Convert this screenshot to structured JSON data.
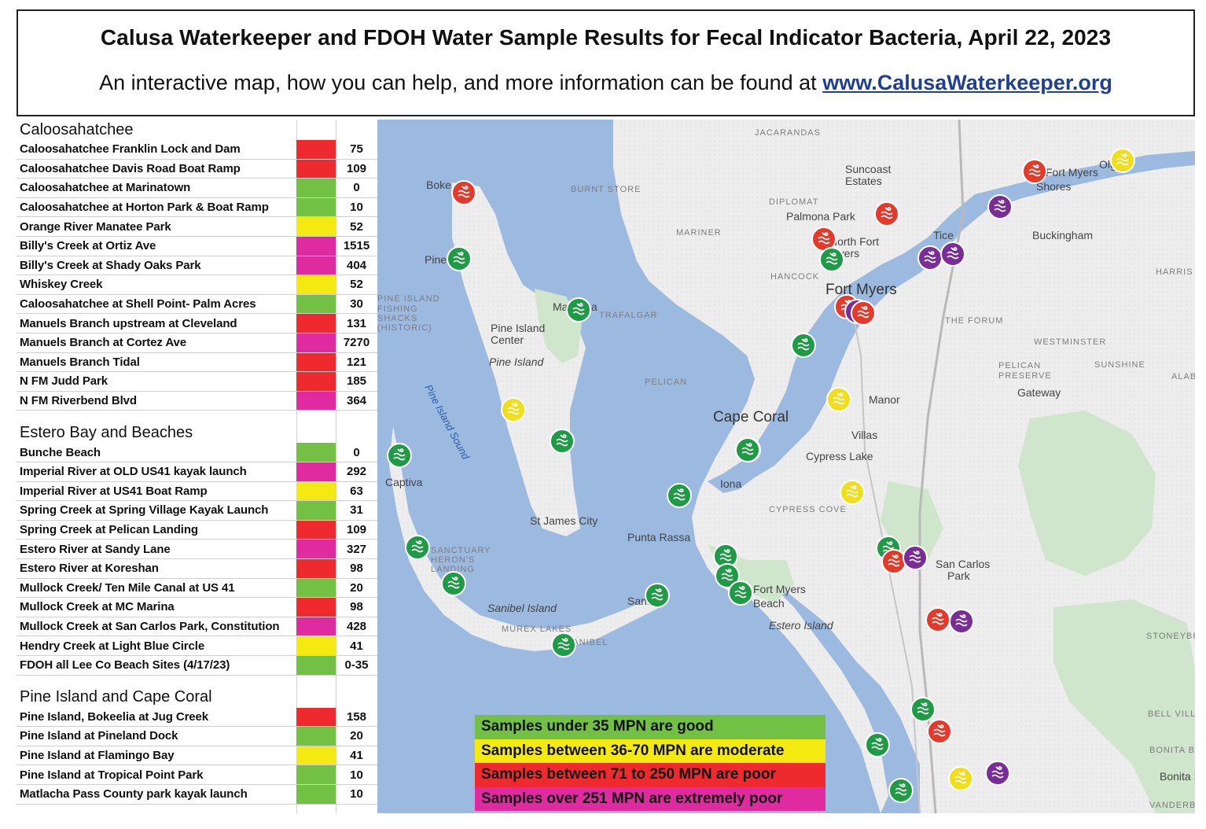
{
  "header": {
    "title": "Calusa Waterkeeper and FDOH Water Sample Results for Fecal Indicator Bacteria, April 22, 2023",
    "subtitle_text": "An interactive map, how you can help, and more information can be found at",
    "link_text": "www.CalusaWaterkeeper.org"
  },
  "colors": {
    "good": "#72c044",
    "moderate": "#f4ea12",
    "poor": "#ee2a2e",
    "extremely_poor": "#e02a9f",
    "water": "#9cb9e0",
    "land": "#ececec",
    "park": "#cfe5cc"
  },
  "sections": [
    {
      "name": "Caloosahatchee",
      "sites": [
        {
          "name": "Caloosahatchee Franklin Lock and Dam",
          "value": "75",
          "level": "poor"
        },
        {
          "name": "Caloosahatchee Davis Road Boat Ramp",
          "value": "109",
          "level": "poor"
        },
        {
          "name": "Caloosahatchee at Marinatown",
          "value": "0",
          "level": "good"
        },
        {
          "name": "Caloosahatchee at Horton Park & Boat Ramp",
          "value": "10",
          "level": "good"
        },
        {
          "name": "Orange River Manatee Park",
          "value": "52",
          "level": "moderate"
        },
        {
          "name": "Billy's Creek at Ortiz Ave",
          "value": "1515",
          "level": "extremely_poor"
        },
        {
          "name": "Billy's Creek at Shady Oaks Park",
          "value": "404",
          "level": "extremely_poor"
        },
        {
          "name": "Whiskey Creek",
          "value": "52",
          "level": "moderate"
        },
        {
          "name": "Caloosahatchee at Shell Point- Palm Acres",
          "value": "30",
          "level": "good"
        },
        {
          "name": "Manuels Branch upstream at Cleveland",
          "value": "131",
          "level": "poor"
        },
        {
          "name": "Manuels Branch at Cortez Ave",
          "value": "7270",
          "level": "extremely_poor"
        },
        {
          "name": "Manuels Branch Tidal",
          "value": "121",
          "level": "poor"
        },
        {
          "name": "N FM Judd Park",
          "value": "185",
          "level": "poor"
        },
        {
          "name": "N FM Riverbend Blvd",
          "value": "364",
          "level": "extremely_poor"
        }
      ]
    },
    {
      "name": "Estero Bay and Beaches",
      "sites": [
        {
          "name": "Bunche Beach",
          "value": "0",
          "level": "good"
        },
        {
          "name": "Imperial River at OLD US41 kayak launch",
          "value": "292",
          "level": "extremely_poor"
        },
        {
          "name": "Imperial River at US41 Boat Ramp",
          "value": "63",
          "level": "moderate"
        },
        {
          "name": "Spring Creek at Spring Village Kayak Launch",
          "value": "31",
          "level": "good"
        },
        {
          "name": "Spring Creek at Pelican Landing",
          "value": "109",
          "level": "poor"
        },
        {
          "name": "Estero River at Sandy Lane",
          "value": "327",
          "level": "extremely_poor"
        },
        {
          "name": "Estero River at Koreshan",
          "value": "98",
          "level": "poor"
        },
        {
          "name": "Mullock Creek/ Ten Mile Canal at US 41",
          "value": "20",
          "level": "good"
        },
        {
          "name": "Mullock Creek at MC Marina",
          "value": "98",
          "level": "poor"
        },
        {
          "name": "Mullock Creek at San Carlos Park, Constitution",
          "value": "428",
          "level": "extremely_poor"
        },
        {
          "name": "Hendry Creek at Light Blue Circle",
          "value": "41",
          "level": "moderate"
        },
        {
          "name": "FDOH all Lee Co Beach Sites (4/17/23)",
          "value": "0-35",
          "level": "good"
        }
      ]
    },
    {
      "name": "Pine Island and Cape Coral",
      "sites": [
        {
          "name": "Pine Island, Bokeelia at Jug Creek",
          "value": "158",
          "level": "poor"
        },
        {
          "name": "Pine Island at Pineland Dock",
          "value": "20",
          "level": "good"
        },
        {
          "name": "Pine Island at Flamingo Bay",
          "value": "41",
          "level": "moderate"
        },
        {
          "name": "Pine Island at Tropical Point Park",
          "value": "10",
          "level": "good"
        },
        {
          "name": "Matlacha Pass County park kayak launch",
          "value": "10",
          "level": "good"
        }
      ]
    }
  ],
  "legend": [
    {
      "text": "Samples under 35 MPN are good",
      "level": "good"
    },
    {
      "text": "Samples between 36-70 MPN are moderate",
      "level": "moderate"
    },
    {
      "text": "Samples between 71 to 250 MPN are poor",
      "level": "poor"
    },
    {
      "text": "Samples over 251 MPN are extremely poor",
      "level": "extremely_poor"
    }
  ],
  "map": {
    "place_labels": [
      {
        "text": "JACARANDAS",
        "style": "caps"
      },
      {
        "text": "Suncoast",
        "style": "town"
      },
      {
        "text": "Estates",
        "style": "town"
      },
      {
        "text": "Olga",
        "style": "town"
      },
      {
        "text": "Fort Myers",
        "style": "town"
      },
      {
        "text": "Shores",
        "style": "town"
      },
      {
        "text": "Boke",
        "style": "town"
      },
      {
        "text": "BURNT STORE",
        "style": "caps"
      },
      {
        "text": "DIPLOMAT",
        "style": "caps"
      },
      {
        "text": "Palmona Park",
        "style": "town"
      },
      {
        "text": "Tice",
        "style": "town"
      },
      {
        "text": "Buckingham",
        "style": "town"
      },
      {
        "text": "MARINER",
        "style": "caps"
      },
      {
        "text": "North Fort",
        "style": "town"
      },
      {
        "text": "Myers",
        "style": "town"
      },
      {
        "text": "HANCOCK",
        "style": "caps"
      },
      {
        "text": "HARRIS",
        "style": "caps"
      },
      {
        "text": "Pineland",
        "style": "town"
      },
      {
        "text": "Fort Myers",
        "style": "city"
      },
      {
        "text": "PINE ISLAND",
        "style": "caps"
      },
      {
        "text": "FISHING",
        "style": "caps"
      },
      {
        "text": "SHACKS",
        "style": "caps"
      },
      {
        "text": "(HISTORIC)",
        "style": "caps"
      },
      {
        "text": "Matlacha",
        "style": "town"
      },
      {
        "text": "TRAFALGAR",
        "style": "caps"
      },
      {
        "text": "THE FORUM",
        "style": "caps"
      },
      {
        "text": "Pine Island",
        "style": "town"
      },
      {
        "text": "Center",
        "style": "town"
      },
      {
        "text": "WESTMINSTER",
        "style": "caps"
      },
      {
        "text": "Pine Island",
        "style": "italic"
      },
      {
        "text": "PELICAN",
        "style": "caps"
      },
      {
        "text": "PRESERVE",
        "style": "caps"
      },
      {
        "text": "SUNSHINE",
        "style": "caps"
      },
      {
        "text": "ALABAMA",
        "style": "caps"
      },
      {
        "text": "PELICAN",
        "style": "caps"
      },
      {
        "text": "Gateway",
        "style": "town"
      },
      {
        "text": "Manor",
        "style": "town"
      },
      {
        "text": "Cape Coral",
        "style": "city"
      },
      {
        "text": "Villas",
        "style": "town"
      },
      {
        "text": "Cypress Lake",
        "style": "town"
      },
      {
        "text": "Captiva",
        "style": "town"
      },
      {
        "text": "Iona",
        "style": "town"
      },
      {
        "text": "CYPRESS COVE",
        "style": "caps"
      },
      {
        "text": "St James City",
        "style": "town"
      },
      {
        "text": "Punta Rassa",
        "style": "town"
      },
      {
        "text": "SANCTUARY",
        "style": "caps"
      },
      {
        "text": "HERON'S",
        "style": "caps"
      },
      {
        "text": "LANDING",
        "style": "caps"
      },
      {
        "text": "San Carlos",
        "style": "town"
      },
      {
        "text": "Park",
        "style": "town"
      },
      {
        "text": "Sanibel",
        "style": "town"
      },
      {
        "text": "Fort Myers",
        "style": "town"
      },
      {
        "text": "Beach",
        "style": "town"
      },
      {
        "text": "Sanibel Island",
        "style": "italic"
      },
      {
        "text": "MUREX LAKES",
        "style": "caps"
      },
      {
        "text": "SANIBEL",
        "style": "caps"
      },
      {
        "text": "Estero Island",
        "style": "italic"
      },
      {
        "text": "STONEYBROOK",
        "style": "caps"
      },
      {
        "text": "BELL VILLA",
        "style": "caps"
      },
      {
        "text": "BONITA BAY",
        "style": "caps"
      },
      {
        "text": "Bonita Springs",
        "style": "town"
      },
      {
        "text": "VANDERBILT",
        "style": "caps"
      },
      {
        "text": "Pine Island Sound",
        "style": "water"
      }
    ],
    "markers": [
      {
        "level": "poor",
        "site": "Pine Island, Bokeelia at Jug Creek"
      },
      {
        "level": "good",
        "site": "Pine Island at Pineland Dock"
      },
      {
        "level": "good",
        "site": "Matlacha Pass County park kayak launch"
      },
      {
        "level": "moderate",
        "site": "Pine Island at Flamingo Bay"
      },
      {
        "level": "good",
        "site": "Pine Island at Tropical Point Park"
      },
      {
        "level": "good",
        "site": "Captiva beach"
      },
      {
        "level": "good",
        "site": "Sanibel beach"
      },
      {
        "level": "good",
        "site": "Sanibel beach"
      },
      {
        "level": "good",
        "site": "Sanibel beach"
      },
      {
        "level": "good",
        "site": "Sanibel Causeway beach"
      },
      {
        "level": "good",
        "site": "Cape Coral Yacht Club"
      },
      {
        "level": "good",
        "site": "Bunche Beach"
      },
      {
        "level": "good",
        "site": "Fort Myers Beach"
      },
      {
        "level": "good",
        "site": "Fort Myers Beach"
      },
      {
        "level": "good",
        "site": "Fort Myers Beach"
      },
      {
        "level": "poor",
        "site": "Caloosahatchee Franklin Lock and Dam"
      },
      {
        "level": "poor",
        "site": "Caloosahatchee Davis Road Boat Ramp"
      },
      {
        "level": "moderate",
        "site": "Orange River Manatee Park"
      },
      {
        "level": "extremely_poor",
        "site": "N FM Riverbend Blvd"
      },
      {
        "level": "poor",
        "site": "N FM Judd Park"
      },
      {
        "level": "good",
        "site": "Caloosahatchee at Marinatown"
      },
      {
        "level": "extremely_poor",
        "site": "Billy's Creek at Ortiz Ave"
      },
      {
        "level": "extremely_poor",
        "site": "Billy's Creek at Shady Oaks Park"
      },
      {
        "level": "poor",
        "site": "Manuels Branch upstream at Cleveland"
      },
      {
        "level": "extremely_poor",
        "site": "Manuels Branch at Cortez Ave"
      },
      {
        "level": "poor",
        "site": "Manuels Branch Tidal"
      },
      {
        "level": "good",
        "site": "Caloosahatchee at Horton Park & Boat Ramp"
      },
      {
        "level": "moderate",
        "site": "Whiskey Creek"
      },
      {
        "level": "good",
        "site": "Caloosahatchee at Shell Point- Palm Acres"
      },
      {
        "level": "moderate",
        "site": "Hendry Creek at Light Blue Circle"
      },
      {
        "level": "good",
        "site": "Mullock Creek/ Ten Mile Canal at US 41"
      },
      {
        "level": "poor",
        "site": "Mullock Creek at MC Marina"
      },
      {
        "level": "extremely_poor",
        "site": "Mullock Creek at San Carlos Park, Constitution"
      },
      {
        "level": "poor",
        "site": "Estero River at Koreshan"
      },
      {
        "level": "extremely_poor",
        "site": "Estero River at Sandy Lane"
      },
      {
        "level": "good",
        "site": "Spring Creek at Spring Village Kayak Launch"
      },
      {
        "level": "poor",
        "site": "Spring Creek at Pelican Landing"
      },
      {
        "level": "good",
        "site": "Bonita beach"
      },
      {
        "level": "moderate",
        "site": "Imperial River at US41 Boat Ramp"
      },
      {
        "level": "extremely_poor",
        "site": "Imperial River at OLD US41 kayak launch"
      },
      {
        "level": "good",
        "site": "Bonita beach"
      }
    ]
  }
}
